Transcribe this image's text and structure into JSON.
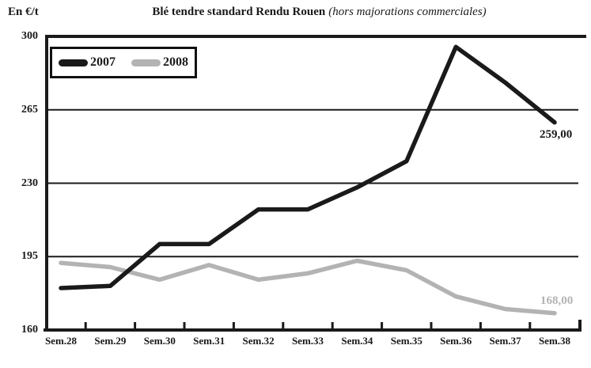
{
  "header": {
    "unit_label": "En €/t",
    "title_main": "Blé tendre standard Rendu Rouen",
    "title_paren": "(hors majorations commerciales)"
  },
  "legend": {
    "items": [
      {
        "label": "2007",
        "color": "#1a1a1a"
      },
      {
        "label": "2008",
        "color": "#b3b3b3"
      }
    ]
  },
  "chart_data": {
    "type": "line",
    "title": "Blé tendre standard Rendu Rouen (hors majorations commerciales)",
    "ylabel": "En €/t",
    "categories": [
      "Sem.28",
      "Sem.29",
      "Sem.30",
      "Sem.31",
      "Sem.32",
      "Sem.33",
      "Sem.34",
      "Sem.35",
      "Sem.36",
      "Sem.37",
      "Sem.38"
    ],
    "series": [
      {
        "name": "2007",
        "color": "#1a1a1a",
        "values": [
          180,
          181,
          201,
          201,
          217.5,
          217.5,
          228,
          240.5,
          295,
          278,
          259
        ],
        "end_label": "259,00"
      },
      {
        "name": "2008",
        "color": "#b3b3b3",
        "values": [
          192,
          190,
          184,
          191,
          184,
          187,
          193,
          188.5,
          176,
          170,
          168
        ],
        "end_label": "168,00"
      }
    ],
    "ylim": [
      160,
      300
    ],
    "yticks": [
      160,
      195,
      230,
      265,
      300
    ],
    "grid": "horizontal",
    "legend_position": "top-left",
    "frame_color": "#1a1a1a"
  }
}
